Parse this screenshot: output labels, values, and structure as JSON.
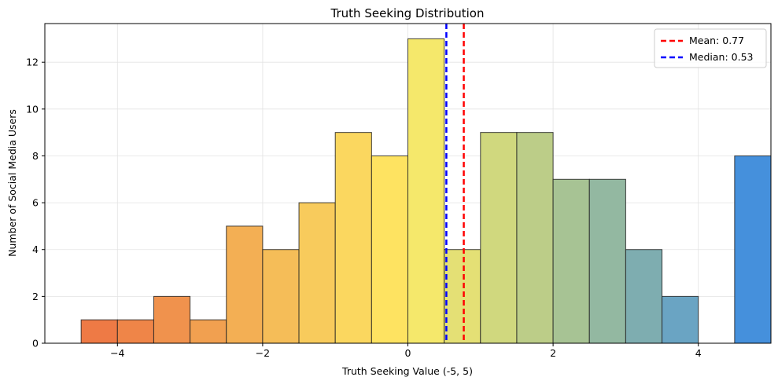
{
  "chart_data": {
    "type": "bar",
    "title": "Truth Seeking Distribution",
    "xlabel": "Truth Seeking Value (-5, 5)",
    "ylabel": "Number of Social Media Users",
    "xlim": [
      -5,
      5
    ],
    "ylim": [
      0,
      13.65
    ],
    "xticks": [
      -4,
      -2,
      0,
      2,
      4
    ],
    "xtick_labels": [
      "−4",
      "−2",
      "0",
      "2",
      "4"
    ],
    "yticks": [
      0,
      2,
      4,
      6,
      8,
      10,
      12
    ],
    "grid": true,
    "legend_position": "top-right",
    "bins": [
      {
        "x0": -4.5,
        "x1": -4.0,
        "count": 1,
        "color": "#ee7a45"
      },
      {
        "x0": -4.0,
        "x1": -3.5,
        "count": 1,
        "color": "#ef8548"
      },
      {
        "x0": -3.5,
        "x1": -3.0,
        "count": 2,
        "color": "#f0924d"
      },
      {
        "x0": -3.0,
        "x1": -2.5,
        "count": 1,
        "color": "#f1a050"
      },
      {
        "x0": -2.5,
        "x1": -2.0,
        "count": 5,
        "color": "#f3af54"
      },
      {
        "x0": -2.0,
        "x1": -1.5,
        "count": 4,
        "color": "#f5bd58"
      },
      {
        "x0": -1.5,
        "x1": -1.0,
        "count": 6,
        "color": "#f8cb5c"
      },
      {
        "x0": -1.0,
        "x1": -0.5,
        "count": 9,
        "color": "#fbd75f"
      },
      {
        "x0": -0.5,
        "x1": 0.0,
        "count": 8,
        "color": "#fee361"
      },
      {
        "x0": 0.0,
        "x1": 0.5,
        "count": 13,
        "color": "#f5e86b"
      },
      {
        "x0": 0.5,
        "x1": 1.0,
        "count": 4,
        "color": "#e4e075"
      },
      {
        "x0": 1.0,
        "x1": 1.5,
        "count": 9,
        "color": "#d0d87e"
      },
      {
        "x0": 1.5,
        "x1": 2.0,
        "count": 9,
        "color": "#bccd88"
      },
      {
        "x0": 2.0,
        "x1": 2.5,
        "count": 7,
        "color": "#a7c394"
      },
      {
        "x0": 2.5,
        "x1": 3.0,
        "count": 7,
        "color": "#93b8a1"
      },
      {
        "x0": 3.0,
        "x1": 3.5,
        "count": 4,
        "color": "#7eadb0"
      },
      {
        "x0": 3.5,
        "x1": 4.0,
        "count": 2,
        "color": "#6aa4c3"
      },
      {
        "x0": 4.5,
        "x1": 5.0,
        "count": 8,
        "color": "#4590dc"
      }
    ],
    "mean": {
      "value": 0.77,
      "label": "Mean: 0.77",
      "color": "#ff0000"
    },
    "median": {
      "value": 0.53,
      "label": "Median: 0.53",
      "color": "#0000ff"
    }
  }
}
